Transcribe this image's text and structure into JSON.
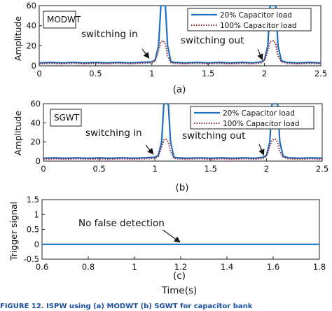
{
  "chart_data": [
    {
      "type": "line",
      "panel_label": "(a)",
      "box_label": "MODWT",
      "ylabel": "Amplitude",
      "xlabel": "",
      "xlim": [
        0,
        2.5
      ],
      "ylim": [
        0,
        60
      ],
      "xticks": [
        "0",
        "0.5",
        "1",
        "1.5",
        "2",
        "2.5"
      ],
      "yticks": [
        "0",
        "20",
        "40",
        "60"
      ],
      "legend": "top-right",
      "annotations": [
        "switching in",
        "switching out"
      ],
      "series": [
        {
          "name": "20%   Capacitor load",
          "color": "#1f6fc0",
          "style": "solid",
          "x": [
            0,
            0.1,
            0.2,
            0.3,
            0.4,
            0.5,
            0.6,
            0.7,
            0.8,
            0.9,
            1.0,
            1.03,
            1.06,
            1.08,
            1.1,
            1.12,
            1.14,
            1.17,
            1.2,
            1.3,
            1.4,
            1.5,
            1.6,
            1.7,
            1.8,
            1.9,
            1.97,
            2.0,
            2.03,
            2.05,
            2.08,
            2.1,
            2.12,
            2.15,
            2.2,
            2.3,
            2.4,
            2.5
          ],
          "y": [
            3,
            3.5,
            3,
            3.5,
            3,
            3.5,
            3,
            3.5,
            3,
            3.5,
            4,
            6,
            20,
            60,
            60,
            60,
            20,
            4,
            3.5,
            3,
            3.5,
            3,
            3.5,
            3,
            3.5,
            3,
            4,
            6,
            20,
            60,
            60,
            60,
            20,
            5,
            3.5,
            3,
            3.5,
            3
          ]
        },
        {
          "name": "100% Capacitor load",
          "color": "#8b1a2a",
          "style": "dotted",
          "x": [
            0,
            0.1,
            0.2,
            0.3,
            0.4,
            0.5,
            0.6,
            0.7,
            0.8,
            0.9,
            1.0,
            1.03,
            1.06,
            1.08,
            1.1,
            1.12,
            1.14,
            1.17,
            1.2,
            1.3,
            1.4,
            1.5,
            1.6,
            1.7,
            1.8,
            1.9,
            1.97,
            2.0,
            2.03,
            2.05,
            2.08,
            2.1,
            2.12,
            2.15,
            2.2,
            2.3,
            2.4,
            2.5
          ],
          "y": [
            2,
            2.5,
            2,
            2.5,
            2,
            2.5,
            2,
            2.5,
            2,
            2.5,
            3,
            5,
            15,
            24,
            25,
            22,
            10,
            3,
            2.5,
            2,
            2.5,
            2,
            2.5,
            2,
            2.5,
            2,
            3,
            5,
            15,
            24,
            25,
            22,
            10,
            4,
            2.5,
            2,
            2.5,
            2
          ]
        }
      ]
    },
    {
      "type": "line",
      "panel_label": "(b)",
      "box_label": "SGWT",
      "ylabel": "Amplitude",
      "xlabel": "",
      "xlim": [
        0,
        2.5
      ],
      "ylim": [
        0,
        60
      ],
      "xticks": [
        "0",
        "0.5",
        "1",
        "1.5",
        "2",
        "2.5"
      ],
      "yticks": [
        "0",
        "20",
        "40",
        "60"
      ],
      "legend": "top-right",
      "annotations": [
        "switching in",
        "switching out"
      ],
      "series": [
        {
          "name": "20%   Capacitor load",
          "color": "#1f6fc0",
          "style": "solid",
          "x": [
            0,
            0.1,
            0.2,
            0.3,
            0.4,
            0.5,
            0.6,
            0.7,
            0.8,
            0.9,
            1.0,
            1.03,
            1.06,
            1.08,
            1.1,
            1.12,
            1.14,
            1.17,
            1.2,
            1.3,
            1.4,
            1.5,
            1.6,
            1.7,
            1.8,
            1.9,
            1.97,
            2.0,
            2.03,
            2.05,
            2.08,
            2.1,
            2.12,
            2.15,
            2.2,
            2.3,
            2.4,
            2.5
          ],
          "y": [
            3,
            3.5,
            3,
            3.5,
            3,
            3.5,
            3,
            3.5,
            3,
            3.5,
            4,
            6,
            20,
            60,
            60,
            60,
            20,
            4,
            3.5,
            3,
            3.5,
            3,
            3.5,
            3,
            3.5,
            3,
            4,
            6,
            20,
            60,
            60,
            60,
            20,
            5,
            3.5,
            3,
            3.5,
            3
          ]
        },
        {
          "name": "100% Capacitor load",
          "color": "#8b1a2a",
          "style": "dotted",
          "x": [
            0,
            0.1,
            0.2,
            0.3,
            0.4,
            0.5,
            0.6,
            0.7,
            0.8,
            0.9,
            1.0,
            1.03,
            1.06,
            1.08,
            1.1,
            1.12,
            1.14,
            1.17,
            1.2,
            1.3,
            1.4,
            1.5,
            1.6,
            1.7,
            1.8,
            1.9,
            1.97,
            2.0,
            2.03,
            2.05,
            2.08,
            2.1,
            2.12,
            2.15,
            2.2,
            2.3,
            2.4,
            2.5
          ],
          "y": [
            2,
            2.5,
            2,
            2.5,
            2,
            2.5,
            2,
            2.5,
            2,
            2.5,
            3,
            5,
            15,
            22,
            23,
            20,
            10,
            3,
            2.5,
            2,
            2.5,
            2,
            2.5,
            2,
            2.5,
            2,
            3,
            5,
            15,
            22,
            23,
            20,
            10,
            4,
            2.5,
            2,
            2.5,
            2
          ]
        }
      ]
    },
    {
      "type": "line",
      "panel_label": "(c)",
      "ylabel": "Trigger signal",
      "xlabel": "Time(s)",
      "xlim": [
        0.6,
        1.8
      ],
      "ylim": [
        -0.5,
        1.5
      ],
      "xticks": [
        "0.6",
        "0.8",
        "1",
        "1.2",
        "1.4",
        "1.6",
        "1.8"
      ],
      "yticks": [
        "-0.5",
        "0",
        "0.5",
        "1",
        "1.5"
      ],
      "annotations": [
        "No false detection"
      ],
      "series": [
        {
          "color": "#1f6fc0",
          "style": "solid",
          "x": [
            0.6,
            1.8
          ],
          "y": [
            0,
            0
          ]
        }
      ]
    }
  ],
  "caption": "FIGURE 12.  ISPW using (a) MODWT (b) SGWT for capacitor bank"
}
